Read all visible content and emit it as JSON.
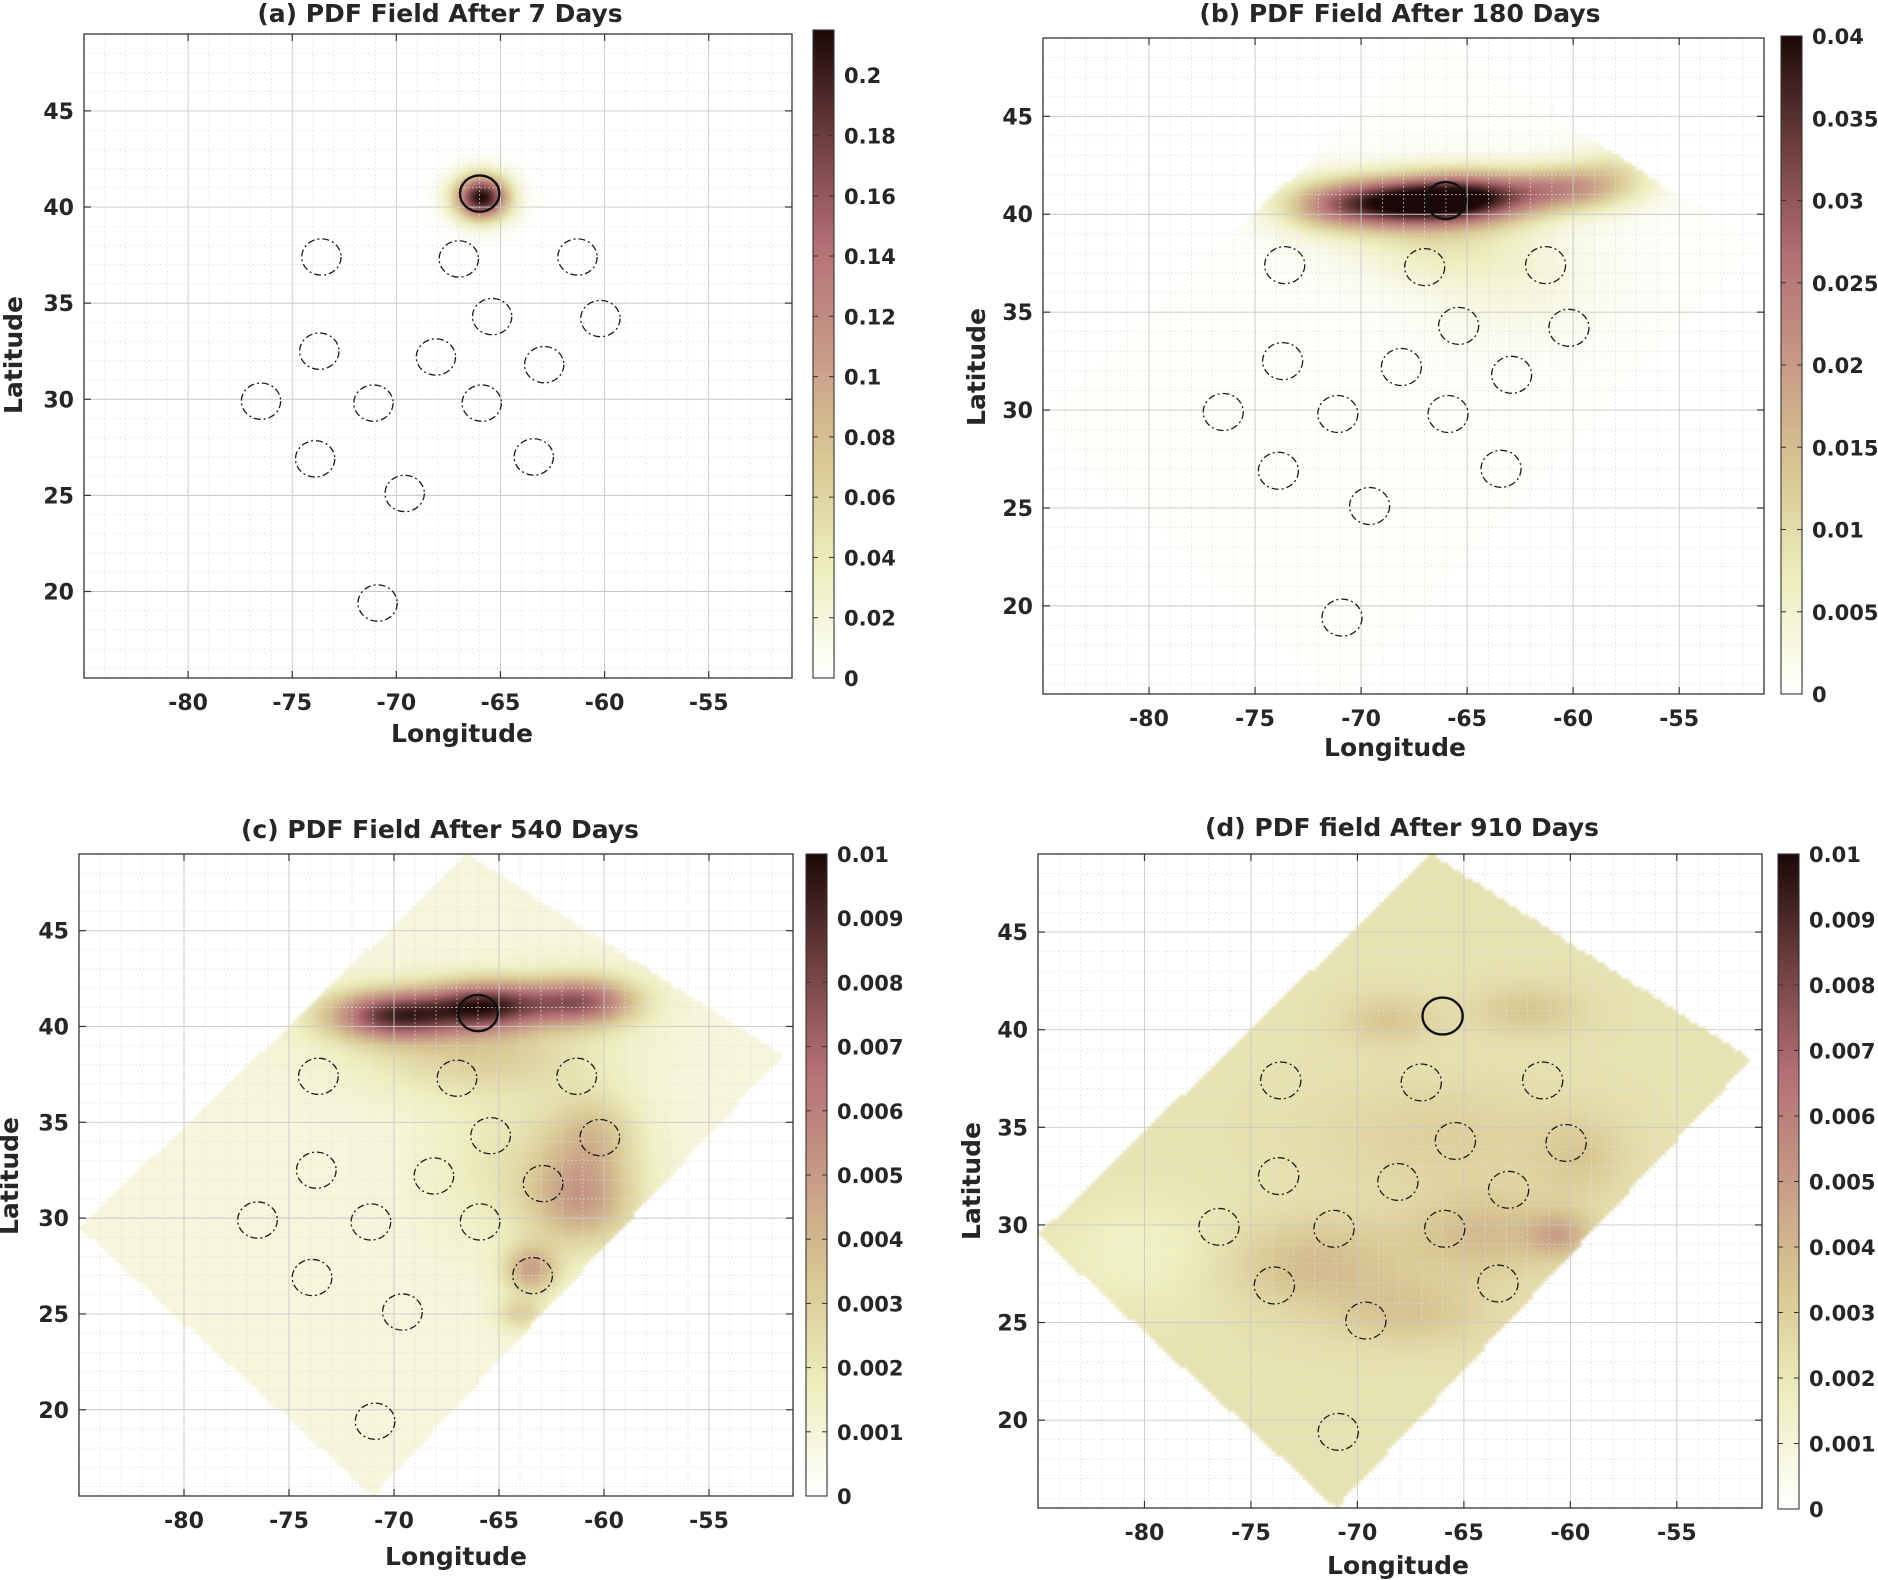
{
  "figure": {
    "colormap": [
      "#ffffff",
      "#eeeec0",
      "#d9c994",
      "#c79a86",
      "#b36f74",
      "#6e3e3e",
      "#1c0808"
    ]
  },
  "chart_data": [
    {
      "type": "heatmap",
      "panel": "a",
      "title": "(a) PDF Field After 7 Days",
      "xlabel": "Longitude",
      "ylabel": "Latitude",
      "xlim": [
        -85,
        -51
      ],
      "ylim": [
        15.5,
        49
      ],
      "xticks": [
        -80,
        -75,
        -70,
        -65,
        -60,
        -55
      ],
      "yticks": [
        20,
        25,
        30,
        35,
        40,
        45
      ],
      "grid": true,
      "colorbar": {
        "min": 0,
        "max": 0.215,
        "ticks": [
          "0",
          "0.02",
          "0.04",
          "0.06",
          "0.08",
          "0.1",
          "0.12",
          "0.14",
          "0.16",
          "0.18",
          "0.2"
        ]
      },
      "domain_polygon": [
        [
          -66.5,
          49
        ],
        [
          -51.5,
          38.5
        ],
        [
          -71,
          15.5
        ],
        [
          -85,
          29.5
        ]
      ],
      "domain_tint": 0,
      "blobs": [
        {
          "lon": -65.9,
          "lat": 40.5,
          "sx": 0.9,
          "sy": 0.8,
          "value": 0.215
        }
      ],
      "release_site": {
        "lon": -66.0,
        "lat": 40.7
      },
      "sampling_sites": [
        [
          -73.6,
          37.4
        ],
        [
          -67.0,
          37.3
        ],
        [
          -61.3,
          37.4
        ],
        [
          -65.4,
          34.3
        ],
        [
          -60.2,
          34.2
        ],
        [
          -73.7,
          32.5
        ],
        [
          -68.1,
          32.2
        ],
        [
          -62.9,
          31.8
        ],
        [
          -76.5,
          29.9
        ],
        [
          -71.1,
          29.8
        ],
        [
          -65.9,
          29.8
        ],
        [
          -73.9,
          26.9
        ],
        [
          -63.4,
          27.0
        ],
        [
          -69.6,
          25.1
        ],
        [
          -70.9,
          19.4
        ]
      ]
    },
    {
      "type": "heatmap",
      "panel": "b",
      "title": "(b) PDF Field After 180 Days",
      "xlabel": "Longitude",
      "ylabel": "Latitude",
      "xlim": [
        -85,
        -51
      ],
      "ylim": [
        15.5,
        49
      ],
      "xticks": [
        -80,
        -75,
        -70,
        -65,
        -60,
        -55
      ],
      "yticks": [
        20,
        25,
        30,
        35,
        40,
        45
      ],
      "grid": true,
      "colorbar": {
        "min": 0,
        "max": 0.04,
        "ticks": [
          "0",
          "0.005",
          "0.01",
          "0.015",
          "0.02",
          "0.025",
          "0.03",
          "0.035",
          "0.04"
        ]
      },
      "domain_polygon": [
        [
          -66.5,
          49
        ],
        [
          -51.5,
          38.5
        ],
        [
          -71,
          15.5
        ],
        [
          -85,
          29.5
        ]
      ],
      "domain_tint": 0.0005,
      "blobs": [
        {
          "lon": -68.0,
          "lat": 40.6,
          "sx": 2.6,
          "sy": 0.9,
          "value": 0.036
        },
        {
          "lon": -64.5,
          "lat": 40.9,
          "sx": 2.2,
          "sy": 0.9,
          "value": 0.026
        },
        {
          "lon": -60.5,
          "lat": 41.3,
          "sx": 1.8,
          "sy": 0.8,
          "value": 0.017
        },
        {
          "lon": -71.5,
          "lat": 40.4,
          "sx": 1.8,
          "sy": 0.9,
          "value": 0.012
        },
        {
          "lon": -66.5,
          "lat": 38.5,
          "sx": 3.0,
          "sy": 1.3,
          "value": 0.006
        },
        {
          "lon": -63.0,
          "lat": 36.5,
          "sx": 3.0,
          "sy": 2.0,
          "value": 0.003
        },
        {
          "lon": -58.0,
          "lat": 42.0,
          "sx": 1.5,
          "sy": 1.0,
          "value": 0.008
        }
      ],
      "release_site": {
        "lon": -66.0,
        "lat": 40.7
      },
      "sampling_sites": [
        [
          -73.6,
          37.4
        ],
        [
          -67.0,
          37.3
        ],
        [
          -61.3,
          37.4
        ],
        [
          -65.4,
          34.3
        ],
        [
          -60.2,
          34.2
        ],
        [
          -73.7,
          32.5
        ],
        [
          -68.1,
          32.2
        ],
        [
          -62.9,
          31.8
        ],
        [
          -76.5,
          29.9
        ],
        [
          -71.1,
          29.8
        ],
        [
          -65.9,
          29.8
        ],
        [
          -73.9,
          26.9
        ],
        [
          -63.4,
          27.0
        ],
        [
          -69.6,
          25.1
        ],
        [
          -70.9,
          19.4
        ]
      ]
    },
    {
      "type": "heatmap",
      "panel": "c",
      "title": "(c) PDF Field After 540 Days",
      "xlabel": "Longitude",
      "ylabel": "Latitude",
      "xlim": [
        -85,
        -51
      ],
      "ylim": [
        15.5,
        49
      ],
      "xticks": [
        -80,
        -75,
        -70,
        -65,
        -60,
        -55
      ],
      "yticks": [
        20,
        25,
        30,
        35,
        40,
        45
      ],
      "grid": true,
      "colorbar": {
        "min": 0,
        "max": 0.01,
        "ticks": [
          "0",
          "0.001",
          "0.002",
          "0.003",
          "0.004",
          "0.005",
          "0.006",
          "0.007",
          "0.008",
          "0.009",
          "0.01"
        ]
      },
      "domain_polygon": [
        [
          -66.5,
          49
        ],
        [
          -51.5,
          38.5
        ],
        [
          -71,
          15.5
        ],
        [
          -85,
          29.5
        ]
      ],
      "domain_tint": 0.0009,
      "blobs": [
        {
          "lon": -70.0,
          "lat": 40.6,
          "sx": 2.2,
          "sy": 0.9,
          "value": 0.0075
        },
        {
          "lon": -65.5,
          "lat": 41.1,
          "sx": 2.0,
          "sy": 0.9,
          "value": 0.0075
        },
        {
          "lon": -61.0,
          "lat": 41.3,
          "sx": 1.8,
          "sy": 0.9,
          "value": 0.006
        },
        {
          "lon": -66.0,
          "lat": 38.5,
          "sx": 4.0,
          "sy": 1.4,
          "value": 0.002
        },
        {
          "lon": -61.0,
          "lat": 31.0,
          "sx": 1.8,
          "sy": 1.8,
          "value": 0.0035
        },
        {
          "lon": -63.5,
          "lat": 27.3,
          "sx": 0.9,
          "sy": 0.9,
          "value": 0.0035
        },
        {
          "lon": -60.5,
          "lat": 34.5,
          "sx": 1.5,
          "sy": 1.5,
          "value": 0.002
        },
        {
          "lon": -64.0,
          "lat": 25.0,
          "sx": 0.8,
          "sy": 0.6,
          "value": 0.002
        },
        {
          "lon": -64.0,
          "lat": 33.0,
          "sx": 3.0,
          "sy": 3.0,
          "value": 0.0012
        }
      ],
      "release_site": {
        "lon": -66.0,
        "lat": 40.7
      },
      "sampling_sites": [
        [
          -73.6,
          37.4
        ],
        [
          -67.0,
          37.3
        ],
        [
          -61.3,
          37.4
        ],
        [
          -65.4,
          34.3
        ],
        [
          -60.2,
          34.2
        ],
        [
          -73.7,
          32.5
        ],
        [
          -68.1,
          32.2
        ],
        [
          -62.9,
          31.8
        ],
        [
          -76.5,
          29.9
        ],
        [
          -71.1,
          29.8
        ],
        [
          -65.9,
          29.8
        ],
        [
          -73.9,
          26.9
        ],
        [
          -63.4,
          27.0
        ],
        [
          -69.6,
          25.1
        ],
        [
          -70.9,
          19.4
        ]
      ]
    },
    {
      "type": "heatmap",
      "panel": "d",
      "title": "(d) PDF field After 910 Days",
      "xlabel": "Longitude",
      "ylabel": "Latitude",
      "xlim": [
        -85,
        -51
      ],
      "ylim": [
        15.5,
        49
      ],
      "xticks": [
        -80,
        -75,
        -70,
        -65,
        -60,
        -55
      ],
      "yticks": [
        20,
        25,
        30,
        35,
        40,
        45
      ],
      "grid": true,
      "colorbar": {
        "min": 0,
        "max": 0.01,
        "ticks": [
          "0",
          "0.001",
          "0.002",
          "0.003",
          "0.004",
          "0.005",
          "0.006",
          "0.007",
          "0.008",
          "0.009",
          "0.01"
        ]
      },
      "domain_polygon": [
        [
          -66.5,
          49
        ],
        [
          -51.5,
          38.5
        ],
        [
          -71,
          15.5
        ],
        [
          -85,
          29.5
        ]
      ],
      "domain_tint": 0.0022,
      "blobs": [
        {
          "lon": -72.0,
          "lat": 28.0,
          "sx": 3.0,
          "sy": 1.6,
          "value": 0.0016
        },
        {
          "lon": -64.0,
          "lat": 29.5,
          "sx": 2.5,
          "sy": 1.5,
          "value": 0.0016
        },
        {
          "lon": -60.5,
          "lat": 29.5,
          "sx": 1.0,
          "sy": 0.8,
          "value": 0.002
        },
        {
          "lon": -68.5,
          "lat": 40.5,
          "sx": 1.5,
          "sy": 0.9,
          "value": 0.0012
        },
        {
          "lon": -62.0,
          "lat": 41.0,
          "sx": 1.8,
          "sy": 0.9,
          "value": 0.0012
        },
        {
          "lon": -66.0,
          "lat": 34.5,
          "sx": 4.0,
          "sy": 2.0,
          "value": 0.0008
        },
        {
          "lon": -67.5,
          "lat": 25.5,
          "sx": 2.5,
          "sy": 1.2,
          "value": 0.0012
        },
        {
          "lon": -59.5,
          "lat": 33.5,
          "sx": 1.5,
          "sy": 1.5,
          "value": 0.001
        },
        {
          "lon": -80.0,
          "lat": 28.5,
          "sx": 3.0,
          "sy": 2.0,
          "value": -0.0008
        }
      ],
      "release_site": {
        "lon": -66.0,
        "lat": 40.7
      },
      "sampling_sites": [
        [
          -73.6,
          37.4
        ],
        [
          -67.0,
          37.3
        ],
        [
          -61.3,
          37.4
        ],
        [
          -65.4,
          34.3
        ],
        [
          -60.2,
          34.2
        ],
        [
          -73.7,
          32.5
        ],
        [
          -68.1,
          32.2
        ],
        [
          -62.9,
          31.8
        ],
        [
          -76.5,
          29.9
        ],
        [
          -71.1,
          29.8
        ],
        [
          -65.9,
          29.8
        ],
        [
          -73.9,
          26.9
        ],
        [
          -63.4,
          27.0
        ],
        [
          -69.6,
          25.1
        ],
        [
          -70.9,
          19.4
        ]
      ]
    }
  ]
}
